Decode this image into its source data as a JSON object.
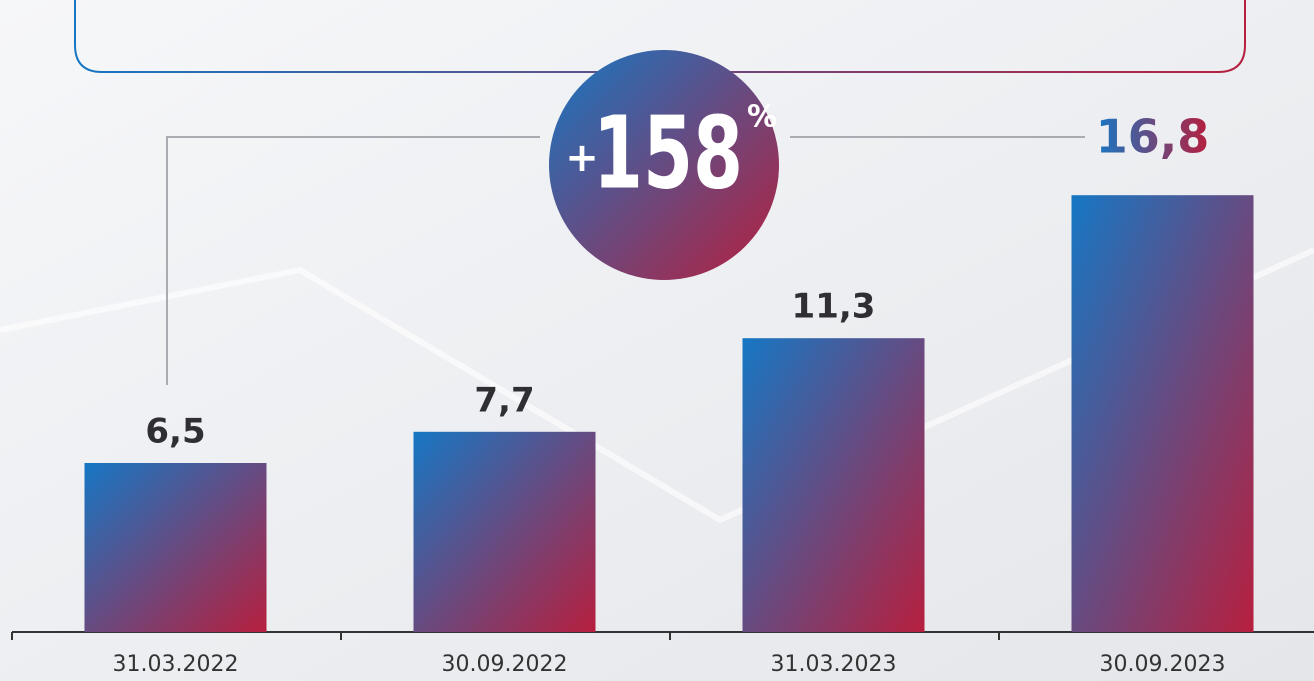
{
  "chart_data": {
    "type": "bar",
    "categories": [
      "31.03.2022",
      "30.09.2022",
      "31.03.2023",
      "30.09.2023"
    ],
    "values": [
      6.5,
      7.7,
      11.3,
      16.8
    ],
    "value_labels": [
      "6,5",
      "7,7",
      "11,3",
      "16,8"
    ],
    "color": [
      "#1677c4",
      "#b71f3e"
    ],
    "annotation": {
      "prefix": "+",
      "number": "158",
      "suffix": "%"
    }
  }
}
